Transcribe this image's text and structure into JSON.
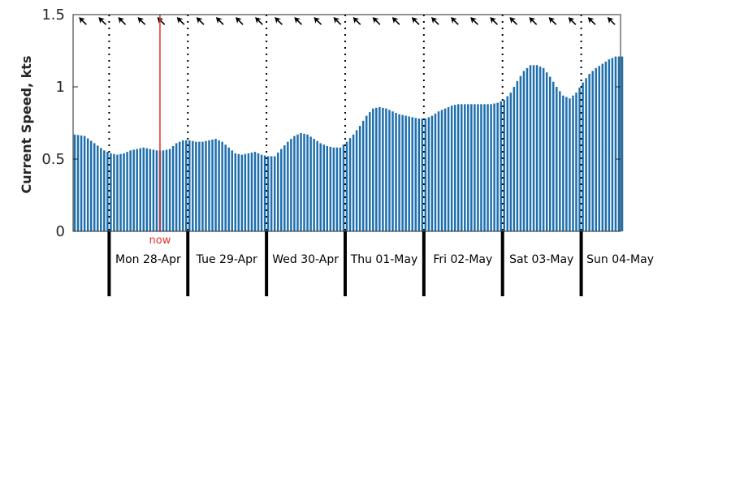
{
  "chart_data": {
    "type": "bar",
    "ylabel": "Current Speed, kts",
    "ylim": [
      0,
      1.5
    ],
    "yticks": [
      {
        "value": 0,
        "label": "0"
      },
      {
        "value": 0.5,
        "label": "0.5"
      },
      {
        "value": 1,
        "label": "1"
      },
      {
        "value": 1.5,
        "label": "1.5"
      }
    ],
    "x_unit": "hours",
    "xlim": [
      -11,
      156
    ],
    "days": [
      "Mon 28-Apr",
      "Tue 29-Apr",
      "Wed 30-Apr",
      "Thu 01-May",
      "Fri 02-May",
      "Sat 03-May",
      "Sun 04-May"
    ],
    "now": {
      "label": "now",
      "hour": 15
    },
    "direction_arrows": "arrow glyphs along top edge indicating current direction",
    "speed_keyframes_by_hour": [
      [
        -11,
        0.67
      ],
      [
        -8,
        0.66
      ],
      [
        -5,
        0.61
      ],
      [
        -2,
        0.56
      ],
      [
        0,
        0.54
      ],
      [
        2,
        0.53
      ],
      [
        4,
        0.54
      ],
      [
        6,
        0.56
      ],
      [
        8,
        0.57
      ],
      [
        10,
        0.58
      ],
      [
        12,
        0.57
      ],
      [
        14,
        0.56
      ],
      [
        16,
        0.56
      ],
      [
        18,
        0.57
      ],
      [
        20,
        0.61
      ],
      [
        22,
        0.63
      ],
      [
        24,
        0.63
      ],
      [
        26,
        0.62
      ],
      [
        28,
        0.62
      ],
      [
        30,
        0.63
      ],
      [
        32,
        0.64
      ],
      [
        34,
        0.62
      ],
      [
        36,
        0.58
      ],
      [
        38,
        0.54
      ],
      [
        40,
        0.53
      ],
      [
        42,
        0.54
      ],
      [
        44,
        0.55
      ],
      [
        46,
        0.53
      ],
      [
        48,
        0.52
      ],
      [
        50,
        0.52
      ],
      [
        52,
        0.57
      ],
      [
        54,
        0.62
      ],
      [
        56,
        0.66
      ],
      [
        58,
        0.68
      ],
      [
        60,
        0.67
      ],
      [
        62,
        0.64
      ],
      [
        64,
        0.61
      ],
      [
        66,
        0.59
      ],
      [
        68,
        0.58
      ],
      [
        70,
        0.58
      ],
      [
        72,
        0.62
      ],
      [
        74,
        0.67
      ],
      [
        76,
        0.73
      ],
      [
        78,
        0.8
      ],
      [
        80,
        0.85
      ],
      [
        82,
        0.86
      ],
      [
        84,
        0.85
      ],
      [
        86,
        0.83
      ],
      [
        88,
        0.81
      ],
      [
        90,
        0.8
      ],
      [
        92,
        0.79
      ],
      [
        94,
        0.78
      ],
      [
        96,
        0.78
      ],
      [
        98,
        0.8
      ],
      [
        100,
        0.83
      ],
      [
        102,
        0.85
      ],
      [
        104,
        0.87
      ],
      [
        106,
        0.88
      ],
      [
        108,
        0.88
      ],
      [
        110,
        0.88
      ],
      [
        112,
        0.88
      ],
      [
        114,
        0.88
      ],
      [
        116,
        0.88
      ],
      [
        118,
        0.89
      ],
      [
        120,
        0.91
      ],
      [
        122,
        0.96
      ],
      [
        124,
        1.04
      ],
      [
        126,
        1.11
      ],
      [
        128,
        1.15
      ],
      [
        130,
        1.15
      ],
      [
        132,
        1.13
      ],
      [
        134,
        1.07
      ],
      [
        136,
        1.0
      ],
      [
        138,
        0.94
      ],
      [
        140,
        0.92
      ],
      [
        142,
        0.96
      ],
      [
        144,
        1.03
      ],
      [
        146,
        1.09
      ],
      [
        148,
        1.13
      ],
      [
        150,
        1.16
      ],
      [
        152,
        1.19
      ],
      [
        154,
        1.21
      ],
      [
        156,
        1.21
      ]
    ],
    "colors": {
      "bar": "#1f6fad",
      "now_line": "#e8302a",
      "now_text": "#e8302a",
      "axis": "#262626"
    }
  }
}
